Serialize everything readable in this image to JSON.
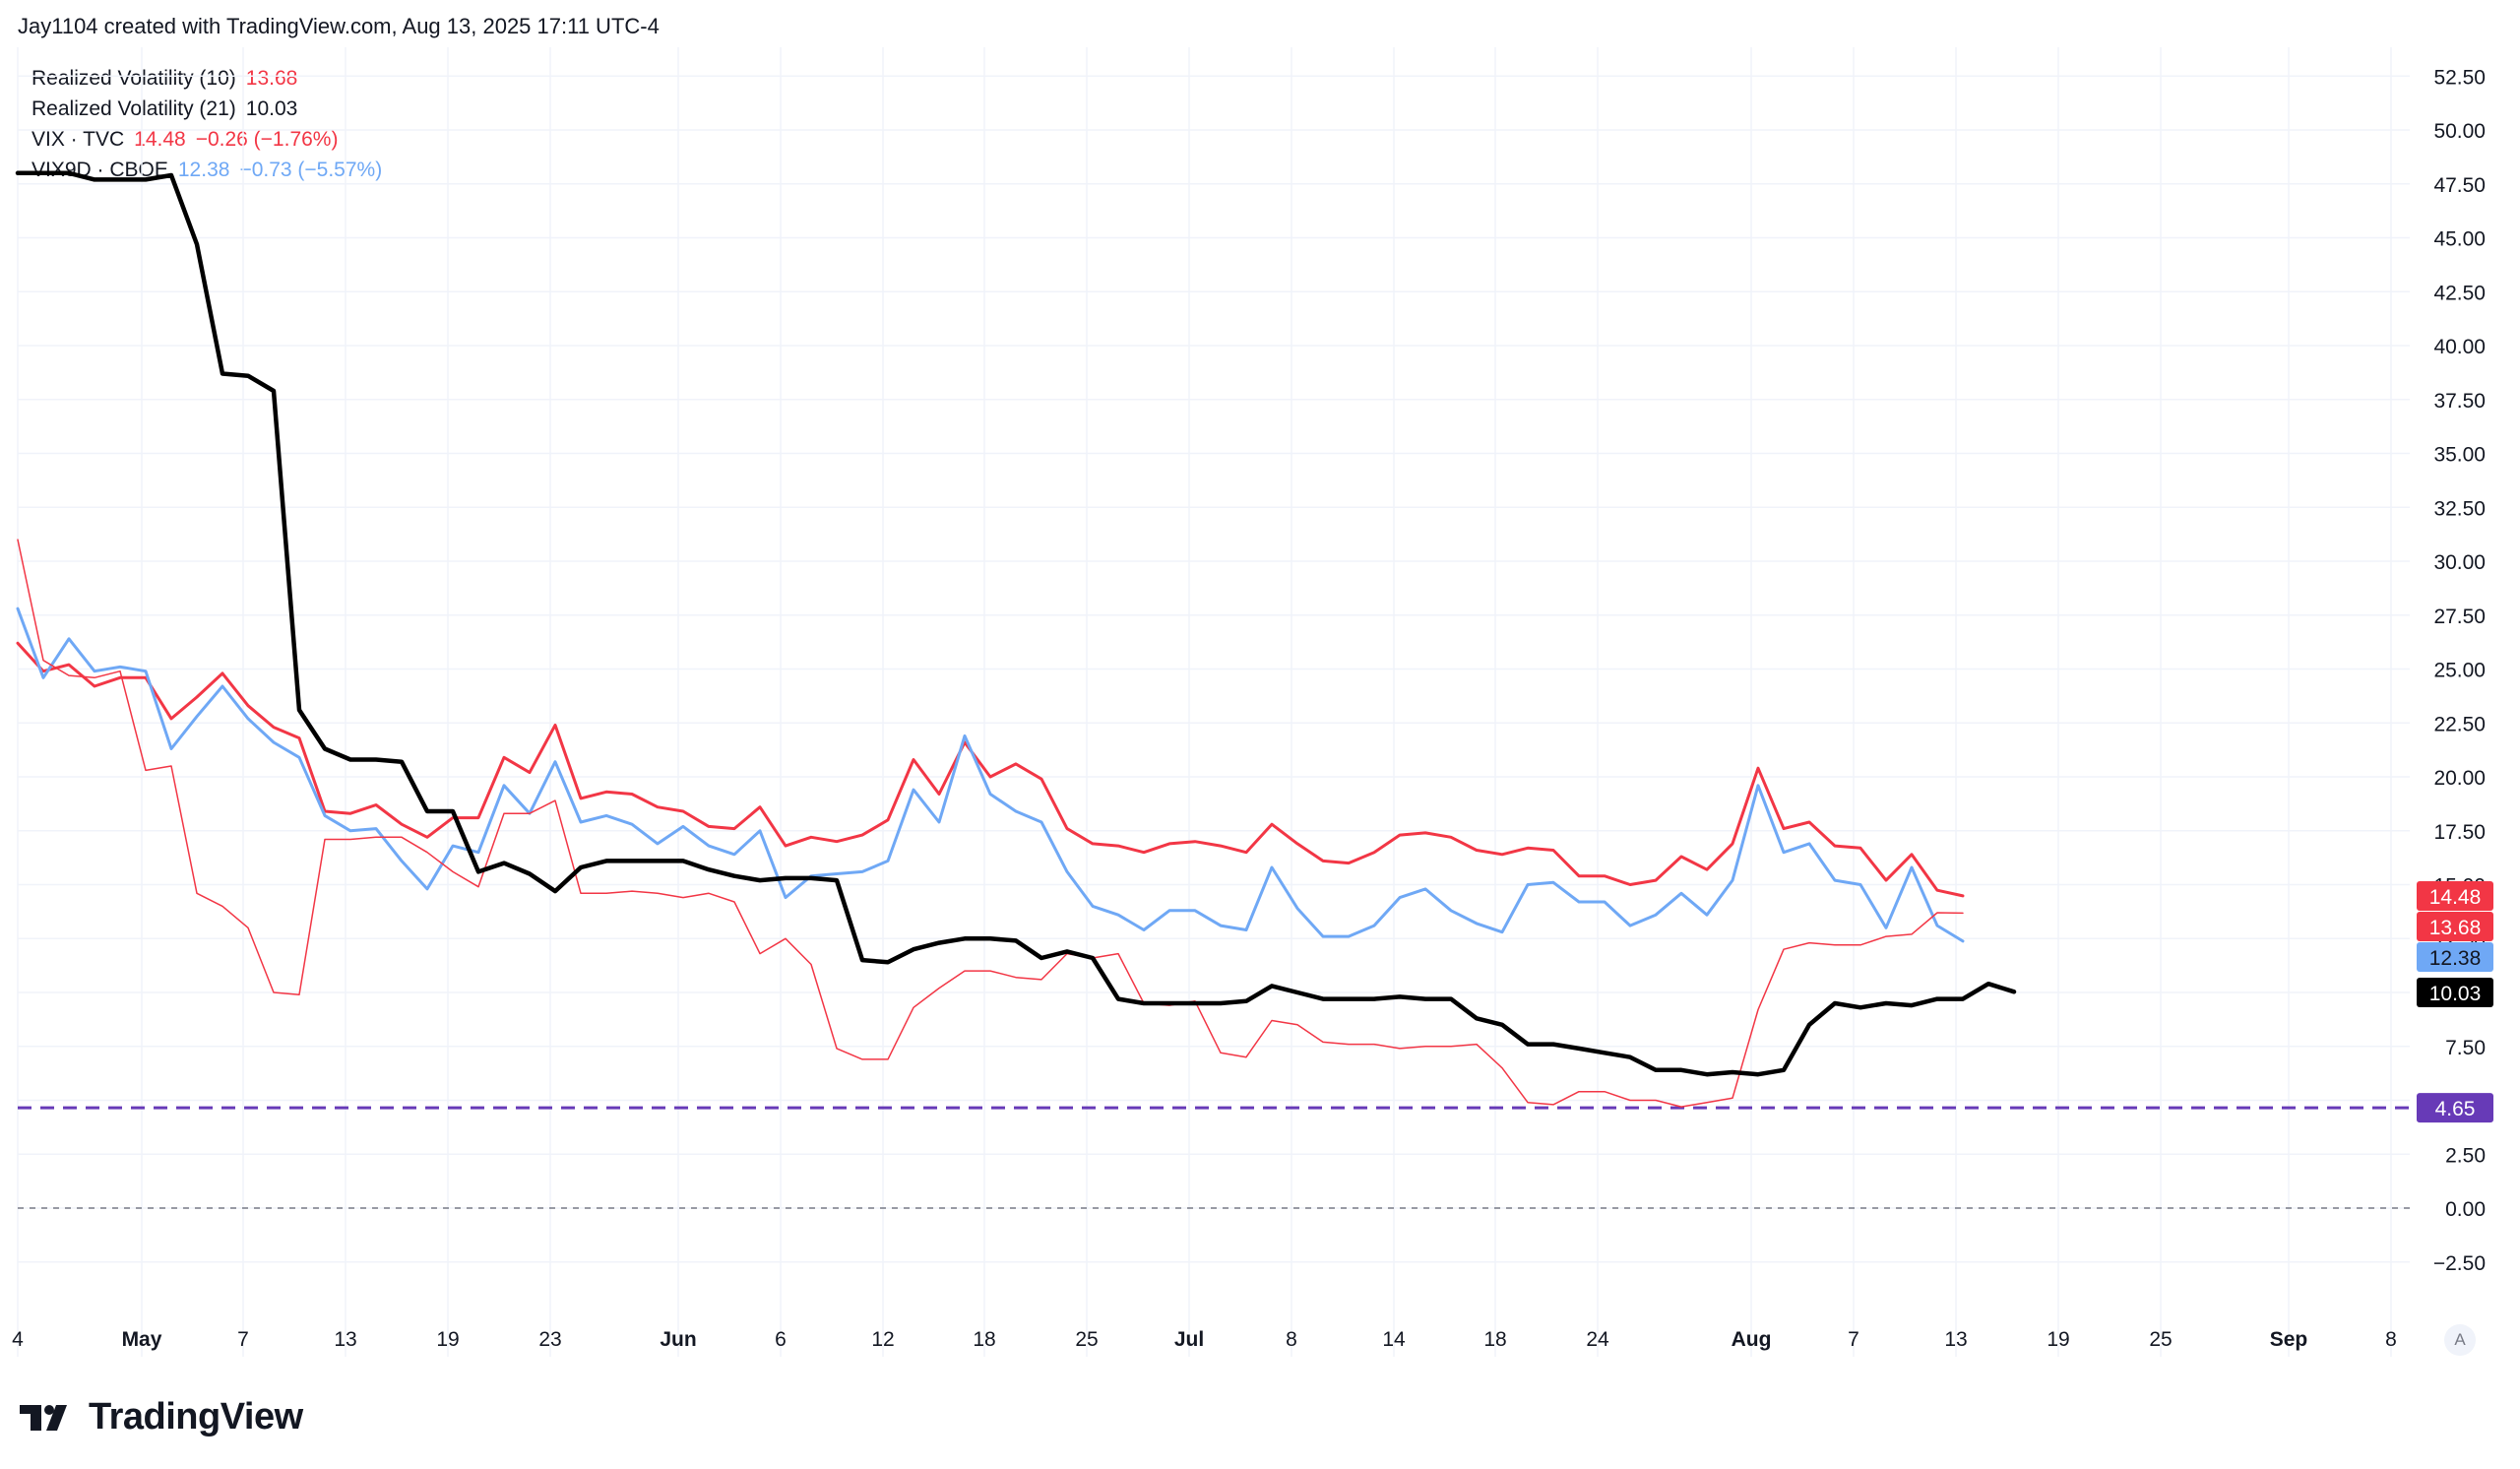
{
  "header": {
    "credit": "Jay1104 created with TradingView.com, Aug 13, 2025 17:11 UTC-4"
  },
  "legend": [
    {
      "name": "Realized Volatility (10)",
      "value": "13.68",
      "change": "",
      "color": "#f23645"
    },
    {
      "name": "Realized Volatility (21)",
      "value": "10.03",
      "change": "",
      "color": "#131722"
    },
    {
      "name": "VIX · TVC",
      "value": "14.48",
      "change": "−0.26 (−1.76%)",
      "color": "#f23645"
    },
    {
      "name": "VIX9D · CBOE",
      "value": "12.38",
      "change": "−0.73 (−5.57%)",
      "color": "#6fa8f5"
    }
  ],
  "footer": {
    "brand": "TradingView",
    "auto_label": "A"
  },
  "chart_data": {
    "type": "line",
    "x_tick_labels": [
      "4",
      "May",
      "7",
      "13",
      "19",
      "23",
      "Jun",
      "6",
      "12",
      "18",
      "25",
      "Jul",
      "8",
      "14",
      "18",
      "24",
      "Aug",
      "7",
      "13",
      "19",
      "25",
      "Sep",
      "8"
    ],
    "y_tick_labels": [
      "52.50",
      "50.00",
      "47.50",
      "45.00",
      "42.50",
      "40.00",
      "37.50",
      "35.00",
      "32.50",
      "30.00",
      "27.50",
      "25.00",
      "22.50",
      "20.00",
      "17.50",
      "15.00",
      "12.50",
      "10.00",
      "7.50",
      "5.00",
      "2.50",
      "0.00",
      "−2.50"
    ],
    "ylim": [
      -4,
      54
    ],
    "grid": true,
    "series": [
      {
        "name": "VIX · TVC",
        "color": "#f23645",
        "width": 3,
        "last_label": "14.48",
        "values": [
          26.2,
          24.9,
          25.2,
          24.2,
          24.6,
          24.6,
          22.7,
          23.7,
          24.8,
          23.3,
          22.3,
          21.8,
          18.4,
          18.3,
          18.7,
          17.8,
          17.2,
          18.1,
          18.1,
          20.9,
          20.2,
          22.4,
          19.0,
          19.3,
          19.2,
          18.6,
          18.4,
          17.7,
          17.6,
          18.6,
          16.8,
          17.2,
          17.0,
          17.3,
          18.0,
          20.8,
          19.2,
          21.6,
          20.0,
          20.6,
          19.9,
          17.6,
          16.9,
          16.8,
          16.5,
          16.9,
          17.0,
          16.8,
          16.5,
          17.8,
          16.9,
          16.1,
          16.0,
          16.5,
          17.3,
          17.4,
          17.2,
          16.6,
          16.4,
          16.7,
          16.6,
          15.4,
          15.4,
          15.0,
          15.2,
          16.3,
          15.7,
          16.9,
          20.4,
          17.6,
          17.9,
          16.8,
          16.7,
          15.2,
          16.4,
          14.74,
          14.48
        ]
      },
      {
        "name": "VIX9D · CBOE",
        "color": "#6fa8f5",
        "width": 3,
        "last_label": "12.38",
        "values": [
          27.8,
          24.6,
          26.4,
          24.9,
          25.1,
          24.9,
          21.3,
          22.8,
          24.2,
          22.7,
          21.6,
          20.9,
          18.2,
          17.5,
          17.6,
          16.1,
          14.8,
          16.8,
          16.5,
          19.6,
          18.3,
          20.7,
          17.9,
          18.2,
          17.8,
          16.9,
          17.7,
          16.8,
          16.4,
          17.5,
          14.4,
          15.4,
          15.5,
          15.6,
          16.1,
          19.4,
          17.9,
          21.9,
          19.2,
          18.4,
          17.9,
          15.6,
          14.0,
          13.6,
          12.9,
          13.8,
          13.8,
          13.1,
          12.9,
          15.8,
          13.9,
          12.6,
          12.6,
          13.1,
          14.4,
          14.8,
          13.8,
          13.2,
          12.8,
          15.0,
          15.1,
          14.2,
          14.2,
          13.1,
          13.6,
          14.6,
          13.6,
          15.2,
          19.6,
          16.5,
          16.9,
          15.2,
          15.0,
          13.0,
          15.8,
          13.1,
          12.38
        ]
      },
      {
        "name": "Realized Volatility (10)",
        "color": "#f23645",
        "width": 1.5,
        "last_label": "13.68",
        "values": [
          31.0,
          25.4,
          24.7,
          24.6,
          24.9,
          20.3,
          20.5,
          14.6,
          14.0,
          13.0,
          10.0,
          9.9,
          17.1,
          17.1,
          17.2,
          17.2,
          16.5,
          15.6,
          14.9,
          18.3,
          18.3,
          18.9,
          14.6,
          14.6,
          14.7,
          14.6,
          14.4,
          14.6,
          14.2,
          11.8,
          12.5,
          11.3,
          7.4,
          6.9,
          6.9,
          9.3,
          10.2,
          11.0,
          11.0,
          10.7,
          10.6,
          11.8,
          11.6,
          11.8,
          9.5,
          9.4,
          9.6,
          7.2,
          7.0,
          8.7,
          8.5,
          7.7,
          7.6,
          7.6,
          7.4,
          7.5,
          7.5,
          7.6,
          6.5,
          4.9,
          4.8,
          5.4,
          5.4,
          5.0,
          5.0,
          4.7,
          4.9,
          5.1,
          9.2,
          12.0,
          12.3,
          12.2,
          12.2,
          12.6,
          12.7,
          13.7,
          13.68
        ]
      },
      {
        "name": "Realized Volatility (21)",
        "color": "#000000",
        "width": 4.5,
        "last_label": "10.03",
        "values": [
          48.0,
          48.0,
          48.0,
          47.7,
          47.7,
          47.7,
          47.9,
          44.7,
          38.7,
          38.6,
          37.9,
          23.1,
          21.3,
          20.8,
          20.8,
          20.7,
          18.4,
          18.4,
          15.6,
          16.0,
          15.5,
          14.7,
          15.8,
          16.1,
          16.1,
          16.1,
          16.1,
          15.7,
          15.4,
          15.2,
          15.3,
          15.3,
          15.2,
          11.5,
          11.4,
          12.0,
          12.3,
          12.5,
          12.5,
          12.4,
          11.6,
          11.9,
          11.6,
          9.7,
          9.5,
          9.5,
          9.5,
          9.5,
          9.6,
          10.3,
          10.0,
          9.7,
          9.7,
          9.7,
          9.8,
          9.7,
          9.7,
          8.8,
          8.5,
          7.6,
          7.6,
          7.4,
          7.2,
          7.0,
          6.4,
          6.4,
          6.2,
          6.3,
          6.2,
          6.4,
          8.5,
          9.5,
          9.3,
          9.5,
          9.4,
          9.7,
          9.7,
          10.4,
          10.03
        ]
      }
    ],
    "horizontal_lines": [
      {
        "name": "level-4-65",
        "value": 4.65,
        "label": "4.65",
        "color": "#673ab7",
        "style": "dashed"
      },
      {
        "name": "zero-line",
        "value": 0,
        "label": "",
        "color": "#787b86",
        "style": "dotted"
      }
    ]
  }
}
